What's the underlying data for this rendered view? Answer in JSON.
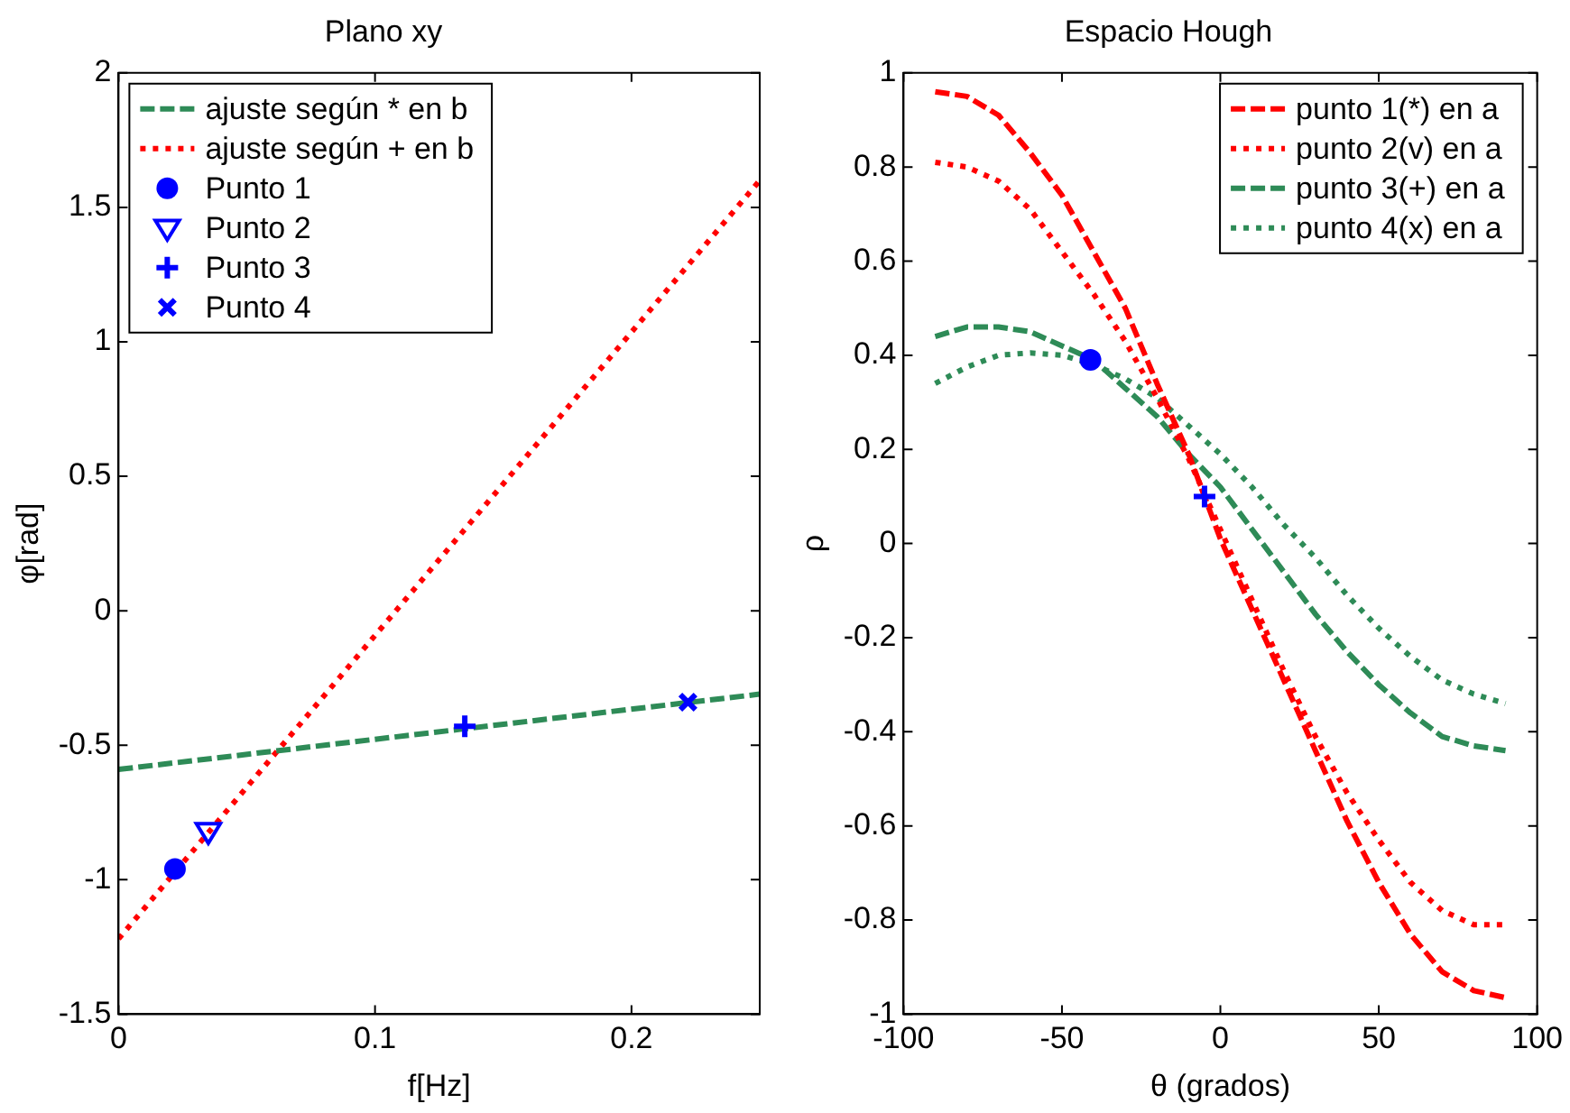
{
  "chart_data": [
    {
      "type": "line",
      "title": "Plano xy",
      "xlabel": "f[Hz]",
      "ylabel": "φ[rad]",
      "xlim": [
        0,
        0.25
      ],
      "xticks": [
        0,
        0.1,
        0.2
      ],
      "ylim": [
        -1.5,
        2
      ],
      "yticks": [
        -1.5,
        -1,
        -0.5,
        0,
        0.5,
        1,
        1.5,
        2
      ],
      "grid": false,
      "legend": "top left",
      "series": [
        {
          "name": "ajuste según * en b",
          "color": "#2e8b57",
          "line_style": "dashed",
          "x": [
            0,
            0.25
          ],
          "values": [
            -0.59,
            -0.31
          ]
        },
        {
          "name": "ajuste según + en b",
          "color": "#ff0000",
          "line_style": "dotted",
          "x": [
            0,
            0.25
          ],
          "values": [
            -1.22,
            1.6
          ]
        },
        {
          "name": "Punto 1",
          "type": "scatter",
          "color": "#0000ff",
          "marker": "circle",
          "x": [
            0.022
          ],
          "values": [
            -0.96
          ]
        },
        {
          "name": "Punto 2",
          "type": "scatter",
          "color": "#0000ff",
          "marker": "triangle",
          "x": [
            0.035
          ],
          "values": [
            -0.82
          ]
        },
        {
          "name": "Punto 3",
          "type": "scatter",
          "color": "#0000ff",
          "marker": "cross",
          "x": [
            0.135
          ],
          "values": [
            -0.43
          ]
        },
        {
          "name": "Punto 4",
          "type": "scatter",
          "color": "#0000ff",
          "marker": "x",
          "x": [
            0.222
          ],
          "values": [
            -0.34
          ]
        }
      ]
    },
    {
      "type": "line",
      "title": "Espacio Hough",
      "xlabel": "θ (grados)",
      "ylabel": "ρ",
      "xlim": [
        -100,
        100
      ],
      "xticks": [
        -100,
        -50,
        0,
        50,
        100
      ],
      "ylim": [
        -1,
        1
      ],
      "yticks": [
        -1,
        -0.8,
        -0.6,
        -0.4,
        -0.2,
        0,
        0.2,
        0.4,
        0.6,
        0.8,
        1
      ],
      "grid": false,
      "legend": "top right",
      "x": [
        -90,
        -80,
        -70,
        -60,
        -50,
        -40,
        -30,
        -20,
        -10,
        0,
        10,
        20,
        30,
        40,
        50,
        60,
        70,
        80,
        90
      ],
      "series": [
        {
          "name": "punto 1(*) en a",
          "color": "#ff0000",
          "line_style": "dashed",
          "values": [
            0.96,
            0.95,
            0.91,
            0.83,
            0.74,
            0.62,
            0.5,
            0.34,
            0.19,
            0.01,
            -0.14,
            -0.29,
            -0.44,
            -0.59,
            -0.72,
            -0.83,
            -0.91,
            -0.95,
            -0.965
          ]
        },
        {
          "name": "punto 2(v) en a",
          "color": "#ff0000",
          "line_style": "dotted",
          "values": [
            0.81,
            0.8,
            0.77,
            0.71,
            0.62,
            0.53,
            0.43,
            0.31,
            0.18,
            0.03,
            -0.12,
            -0.27,
            -0.41,
            -0.53,
            -0.63,
            -0.72,
            -0.78,
            -0.81,
            -0.81
          ]
        },
        {
          "name": "punto 3(+) en a",
          "color": "#2e8b57",
          "line_style": "dashed",
          "values": [
            0.44,
            0.46,
            0.46,
            0.45,
            0.42,
            0.39,
            0.33,
            0.27,
            0.19,
            0.12,
            0.03,
            -0.06,
            -0.15,
            -0.23,
            -0.3,
            -0.36,
            -0.41,
            -0.43,
            -0.44
          ]
        },
        {
          "name": "punto 4(x) en a",
          "color": "#2e8b57",
          "line_style": "dotted",
          "values": [
            0.34,
            0.375,
            0.4,
            0.405,
            0.4,
            0.38,
            0.35,
            0.31,
            0.25,
            0.19,
            0.12,
            0.04,
            -0.03,
            -0.11,
            -0.18,
            -0.24,
            -0.29,
            -0.32,
            -0.34
          ]
        },
        {
          "type": "scatter",
          "color": "#0000ff",
          "marker": "circle",
          "x": [
            -41
          ],
          "values": [
            0.39
          ]
        },
        {
          "type": "scatter",
          "color": "#0000ff",
          "marker": "cross",
          "x": [
            -5
          ],
          "values": [
            0.1
          ]
        }
      ]
    }
  ]
}
